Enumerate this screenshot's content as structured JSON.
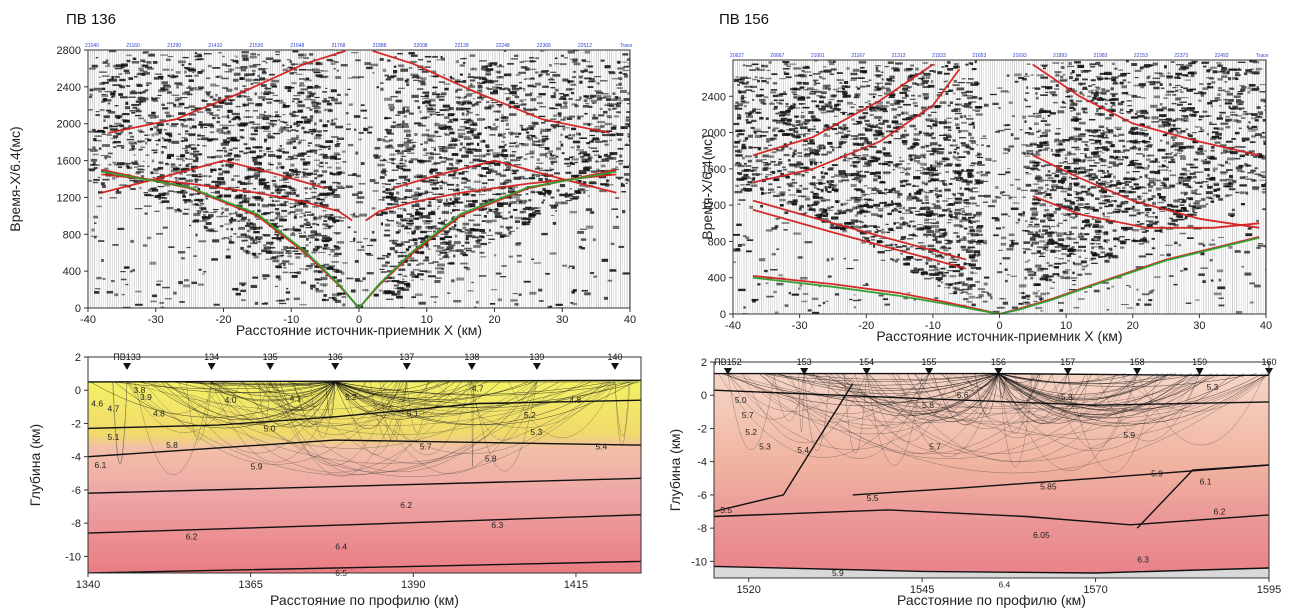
{
  "panels": {
    "seis_a": {
      "title": "ПВ 136"
    },
    "seis_b": {
      "title": "ПВ 156"
    },
    "model_a": {},
    "model_b": {}
  },
  "chart_data": [
    {
      "type": "scatter",
      "title": "ПВ 136",
      "xlabel": "Расстояние источник-приемник X (км)",
      "ylabel": "Время-X/6.4(мс)",
      "xlim": [
        -40,
        40
      ],
      "ylim": [
        0,
        2800
      ],
      "xticks": [
        -40,
        -30,
        -20,
        -10,
        0,
        10,
        20,
        30,
        40
      ],
      "yticks": [
        0,
        400,
        800,
        1200,
        1600,
        2000,
        2400,
        2800
      ],
      "header_labels": [
        "21040",
        "21160",
        "21290",
        "21410",
        "21530",
        "21648",
        "21768",
        "21888",
        "22008",
        "22128",
        "22248",
        "22368",
        "22512",
        "Trace"
      ],
      "series": [
        {
          "color": "#d42020",
          "x": [
            -38,
            -25,
            -15,
            -8,
            -3,
            0
          ],
          "y": [
            1500,
            1300,
            1000,
            600,
            250,
            0
          ]
        },
        {
          "color": "#d42020",
          "x": [
            0,
            3,
            8,
            15,
            25,
            38
          ],
          "y": [
            0,
            250,
            600,
            1000,
            1300,
            1500
          ]
        },
        {
          "color": "#d42020",
          "x": [
            -38,
            -25,
            -15,
            -8,
            -3,
            -1
          ],
          "y": [
            1450,
            1350,
            1250,
            1150,
            1050,
            950
          ]
        },
        {
          "color": "#d42020",
          "x": [
            1,
            3,
            8,
            15,
            25,
            38
          ],
          "y": [
            950,
            1050,
            1150,
            1250,
            1350,
            1450
          ]
        },
        {
          "color": "#d42020",
          "x": [
            -37,
            -27,
            -17,
            -8,
            -2
          ],
          "y": [
            1900,
            2050,
            2350,
            2650,
            2790
          ]
        },
        {
          "color": "#d42020",
          "x": [
            2,
            8,
            17,
            27,
            37
          ],
          "y": [
            2790,
            2650,
            2350,
            2050,
            1900
          ]
        },
        {
          "color": "#d42020",
          "x": [
            -38,
            -30,
            -20,
            -12,
            -5
          ],
          "y": [
            1250,
            1400,
            1600,
            1450,
            1300
          ]
        },
        {
          "color": "#d42020",
          "x": [
            5,
            12,
            20,
            30,
            38
          ],
          "y": [
            1300,
            1450,
            1600,
            1400,
            1250
          ]
        },
        {
          "color": "#2ea02e",
          "x": [
            -38,
            -25,
            -15,
            -8,
            -3,
            0
          ],
          "y": [
            1480,
            1310,
            1020,
            620,
            260,
            0
          ]
        },
        {
          "color": "#2ea02e",
          "x": [
            0,
            3,
            8,
            15,
            25,
            38
          ],
          "y": [
            0,
            260,
            620,
            1020,
            1310,
            1480
          ]
        }
      ]
    },
    {
      "type": "scatter",
      "title": "ПВ 156",
      "xlabel": "Расстояние источник-приемник X (км)",
      "ylabel": "Время-X/6.4(мс)",
      "xlim": [
        -40,
        40
      ],
      "ylim": [
        0,
        2800
      ],
      "xticks": [
        -40,
        -30,
        -20,
        -10,
        0,
        10,
        20,
        30,
        40
      ],
      "yticks": [
        0,
        400,
        800,
        1200,
        1600,
        2000,
        2400
      ],
      "header_labels": [
        "20627",
        "20667",
        "21001",
        "21167",
        "21313",
        "21533",
        "21653",
        "21693",
        "21893",
        "21983",
        "22153",
        "22373",
        "22493",
        "Trace"
      ],
      "series": [
        {
          "color": "#d42020",
          "x": [
            -37,
            -25,
            -15,
            -8,
            -3,
            0
          ],
          "y": [
            420,
            330,
            230,
            130,
            50,
            0
          ]
        },
        {
          "color": "#d42020",
          "x": [
            0,
            3,
            8,
            15,
            25,
            39
          ],
          "y": [
            0,
            60,
            170,
            350,
            600,
            850
          ]
        },
        {
          "color": "#d42020",
          "x": [
            -37,
            -28,
            -18,
            -10
          ],
          "y": [
            1750,
            1950,
            2350,
            2750
          ]
        },
        {
          "color": "#d42020",
          "x": [
            -37,
            -28,
            -18,
            -10,
            -6
          ],
          "y": [
            1450,
            1600,
            1900,
            2300,
            2700
          ]
        },
        {
          "color": "#d42020",
          "x": [
            -37,
            -25,
            -15,
            -5
          ],
          "y": [
            1250,
            1000,
            800,
            600
          ]
        },
        {
          "color": "#d42020",
          "x": [
            -37,
            -25,
            -15,
            -5
          ],
          "y": [
            1150,
            900,
            700,
            500
          ]
        },
        {
          "color": "#d42020",
          "x": [
            5,
            12,
            20,
            30,
            39
          ],
          "y": [
            2750,
            2400,
            2100,
            1900,
            1750
          ]
        },
        {
          "color": "#d42020",
          "x": [
            5,
            12,
            20,
            30,
            39
          ],
          "y": [
            1750,
            1500,
            1250,
            1050,
            950
          ]
        },
        {
          "color": "#d42020",
          "x": [
            5,
            12,
            22,
            32,
            39
          ],
          "y": [
            1300,
            1100,
            950,
            950,
            1000
          ]
        },
        {
          "color": "#2ea02e",
          "x": [
            -37,
            -25,
            -15,
            -8,
            -3,
            0
          ],
          "y": [
            400,
            300,
            200,
            110,
            40,
            0
          ]
        },
        {
          "color": "#2ea02e",
          "x": [
            0,
            3,
            8,
            15,
            25,
            39
          ],
          "y": [
            0,
            50,
            160,
            340,
            590,
            840
          ]
        }
      ]
    },
    {
      "type": "area",
      "xlabel": "Расстояние по профилю (км)",
      "ylabel": "Глубина (км)",
      "xlim": [
        1340,
        1425
      ],
      "ylim": [
        -11,
        2
      ],
      "xticks": [
        1340,
        1365,
        1390,
        1415
      ],
      "yticks": [
        2,
        0,
        -2,
        -4,
        -6,
        -8,
        -10
      ],
      "shot_points": [
        {
          "label": "ПВ133",
          "x": 1346
        },
        {
          "label": "134",
          "x": 1359
        },
        {
          "label": "135",
          "x": 1368
        },
        {
          "label": "136",
          "x": 1378
        },
        {
          "label": "137",
          "x": 1389
        },
        {
          "label": "138",
          "x": 1399
        },
        {
          "label": "139",
          "x": 1409
        },
        {
          "label": "140",
          "x": 1421
        }
      ],
      "boundaries": [
        {
          "x": [
            1340,
            1425
          ],
          "y": [
            0.5,
            0.6
          ]
        },
        {
          "x": [
            1340,
            1360,
            1378,
            1400,
            1425
          ],
          "y": [
            -2.3,
            -2.1,
            -1.6,
            -0.8,
            -0.6
          ]
        },
        {
          "x": [
            1340,
            1378,
            1425
          ],
          "y": [
            -4.0,
            -3.0,
            -3.3
          ]
        },
        {
          "x": [
            1340,
            1378,
            1425
          ],
          "y": [
            -6.2,
            -5.8,
            -5.3
          ]
        },
        {
          "x": [
            1340,
            1380,
            1425
          ],
          "y": [
            -8.6,
            -8.1,
            -7.5
          ]
        },
        {
          "x": [
            1340,
            1390,
            1425
          ],
          "y": [
            -11.0,
            -10.6,
            -10.3
          ]
        }
      ],
      "velocities": [
        {
          "label": "3.8",
          "x": 1347,
          "y": 0.0
        },
        {
          "label": "3.9",
          "x": 1348,
          "y": -0.4
        },
        {
          "label": "4.6",
          "x": 1340.5,
          "y": -0.8
        },
        {
          "label": "4.7",
          "x": 1343,
          "y": -1.1
        },
        {
          "label": "4.8",
          "x": 1350,
          "y": -1.4
        },
        {
          "label": "4.0",
          "x": 1361,
          "y": -0.6
        },
        {
          "label": "4.1",
          "x": 1371,
          "y": -0.5
        },
        {
          "label": "5.2",
          "x": 1379.5,
          "y": -0.4
        },
        {
          "label": "4.7",
          "x": 1399,
          "y": 0.1
        },
        {
          "label": "4.8",
          "x": 1414,
          "y": -0.6
        },
        {
          "label": "5.1",
          "x": 1389,
          "y": -1.4
        },
        {
          "label": "5.2",
          "x": 1407,
          "y": -1.5
        },
        {
          "label": "5.0",
          "x": 1367,
          "y": -2.3
        },
        {
          "label": "5.1",
          "x": 1343,
          "y": -2.8
        },
        {
          "label": "5.3",
          "x": 1408,
          "y": -2.5
        },
        {
          "label": "5.8",
          "x": 1352,
          "y": -3.3
        },
        {
          "label": "5.7",
          "x": 1391,
          "y": -3.4
        },
        {
          "label": "5.4",
          "x": 1418,
          "y": -3.4
        },
        {
          "label": "6.1",
          "x": 1341,
          "y": -4.5
        },
        {
          "label": "5.9",
          "x": 1365,
          "y": -4.6
        },
        {
          "label": "5.8",
          "x": 1401,
          "y": -4.1
        },
        {
          "label": "6.2",
          "x": 1388,
          "y": -6.9
        },
        {
          "label": "6.3",
          "x": 1402,
          "y": -8.1
        },
        {
          "label": "6.2",
          "x": 1355,
          "y": -8.8
        },
        {
          "label": "6.4",
          "x": 1378,
          "y": -9.4
        },
        {
          "label": "6.5",
          "x": 1378,
          "y": -11.0
        }
      ]
    },
    {
      "type": "area",
      "xlabel": "Расстояние по профилю (км)",
      "ylabel": "Глубина (км)",
      "xlim": [
        1515,
        1595
      ],
      "ylim": [
        -11,
        2
      ],
      "xticks": [
        1520,
        1545,
        1570,
        1595
      ],
      "yticks": [
        2,
        0,
        -2,
        -4,
        -6,
        -8,
        -10
      ],
      "shot_points": [
        {
          "label": "ПВ152",
          "x": 1517
        },
        {
          "label": "153",
          "x": 1528
        },
        {
          "label": "154",
          "x": 1537
        },
        {
          "label": "155",
          "x": 1546
        },
        {
          "label": "156",
          "x": 1556
        },
        {
          "label": "157",
          "x": 1566
        },
        {
          "label": "158",
          "x": 1576
        },
        {
          "label": "159",
          "x": 1585
        },
        {
          "label": "160",
          "x": 1595
        }
      ],
      "boundaries": [
        {
          "x": [
            1515,
            1556,
            1585,
            1595
          ],
          "y": [
            1.3,
            1.3,
            1.2,
            1.2
          ]
        },
        {
          "x": [
            1515,
            1545,
            1570,
            1595
          ],
          "y": [
            0.3,
            -0.2,
            -0.6,
            -0.4
          ]
        },
        {
          "x": [
            1535,
            1525,
            1515
          ],
          "y": [
            0.7,
            -6.0,
            -7.0
          ]
        },
        {
          "x": [
            1535,
            1550,
            1570,
            1595
          ],
          "y": [
            -6.0,
            -5.6,
            -5.0,
            -4.2
          ]
        },
        {
          "x": [
            1515,
            1540,
            1560,
            1575,
            1595
          ],
          "y": [
            -7.3,
            -6.9,
            -7.3,
            -7.8,
            -7.2
          ]
        },
        {
          "x": [
            1576,
            1584,
            1595
          ],
          "y": [
            -8.0,
            -4.5,
            -4.2
          ]
        },
        {
          "x": [
            1515,
            1545,
            1570,
            1595
          ],
          "y": [
            -10.3,
            -10.6,
            -10.7,
            -10.4
          ]
        }
      ],
      "velocities": [
        {
          "label": "5.0",
          "x": 1518,
          "y": -0.3
        },
        {
          "label": "5.7",
          "x": 1519,
          "y": -1.2
        },
        {
          "label": "5.2",
          "x": 1519.5,
          "y": -2.2
        },
        {
          "label": "5.3",
          "x": 1521.5,
          "y": -3.1
        },
        {
          "label": "5.4",
          "x": 1527,
          "y": -3.3
        },
        {
          "label": "5.8",
          "x": 1545,
          "y": -0.6
        },
        {
          "label": "5.6",
          "x": 1550,
          "y": 0.0
        },
        {
          "label": "5.8",
          "x": 1565,
          "y": -0.1
        },
        {
          "label": "5.3",
          "x": 1586,
          "y": 0.5
        },
        {
          "label": "5.7",
          "x": 1546,
          "y": -3.1
        },
        {
          "label": "5.9",
          "x": 1574,
          "y": -2.4
        },
        {
          "label": "5.9",
          "x": 1578,
          "y": -4.7
        },
        {
          "label": "5.85",
          "x": 1562,
          "y": -5.5
        },
        {
          "label": "5.5",
          "x": 1537,
          "y": -6.2
        },
        {
          "label": "6.1",
          "x": 1585,
          "y": -5.2
        },
        {
          "label": "-5.5",
          "x": 1515.5,
          "y": -6.9
        },
        {
          "label": "6.2",
          "x": 1587,
          "y": -7.0
        },
        {
          "label": "6.05",
          "x": 1561,
          "y": -8.4
        },
        {
          "label": "6.3",
          "x": 1576,
          "y": -9.9
        },
        {
          "label": "5.9",
          "x": 1532,
          "y": -10.7
        },
        {
          "label": "6.4",
          "x": 1556,
          "y": -11.4
        }
      ]
    }
  ]
}
